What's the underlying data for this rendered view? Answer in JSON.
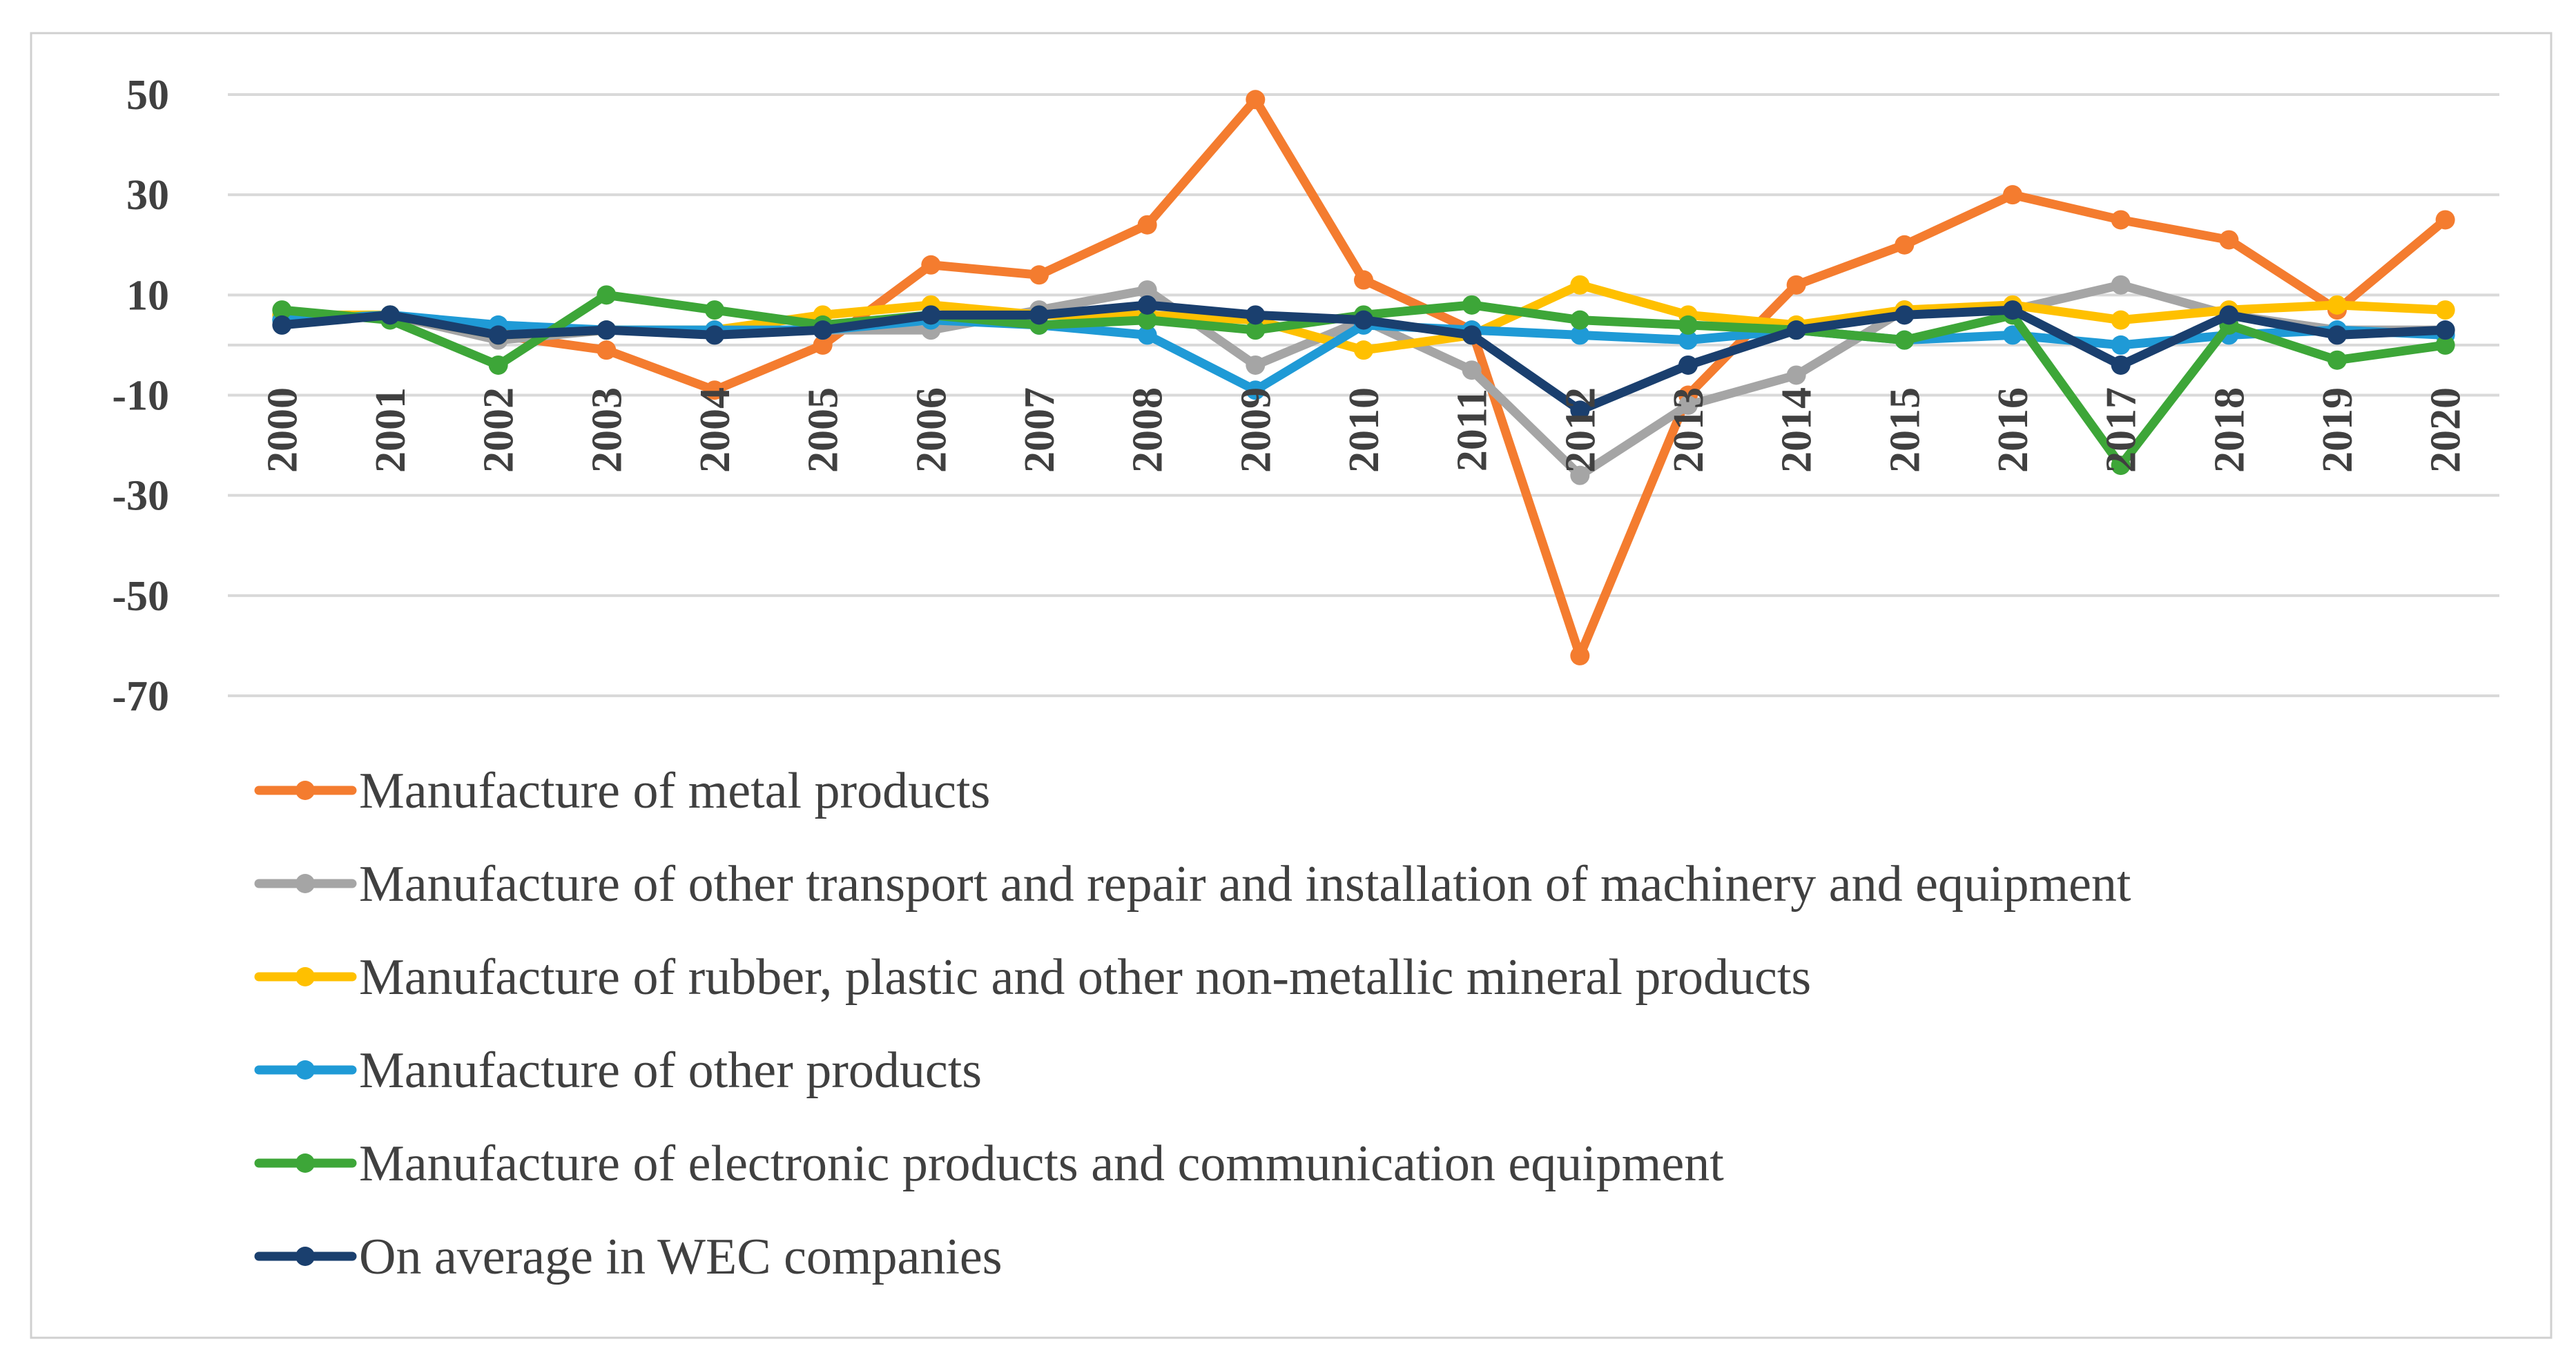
{
  "chart_data": {
    "type": "line",
    "title": "",
    "xlabel": "",
    "ylabel": "",
    "ylim": [
      -70,
      50
    ],
    "yticks": [
      50,
      30,
      10,
      -10,
      -30,
      -50,
      -70
    ],
    "ytick_labels": [
      "50",
      "30",
      "10",
      "-10",
      "-30",
      "-50",
      "-70"
    ],
    "grid": true,
    "legend_position": "bottom",
    "categories": [
      "2000",
      "2001",
      "2002",
      "2003",
      "2004",
      "2005",
      "2006",
      "2007",
      "2008",
      "2009",
      "2010",
      "2011",
      "2012",
      "2013",
      "2014",
      "2015",
      "2016",
      "2017",
      "2018",
      "2019",
      "2020"
    ],
    "series": [
      {
        "name": "Manufacture of metal products",
        "color": "#f47c2f",
        "values": [
          5,
          6,
          2,
          -1,
          -9,
          0,
          16,
          14,
          24,
          49,
          13,
          3,
          -62,
          -10,
          12,
          20,
          30,
          25,
          21,
          7,
          25
        ]
      },
      {
        "name": "Manufacture of other transport  and repair and installation of machinery and equipment",
        "color": "#a5a5a5",
        "values": [
          5,
          6,
          1,
          3,
          3,
          3,
          3,
          7,
          11,
          -4,
          5,
          -5,
          -26,
          -12,
          -6,
          7,
          7,
          12,
          6,
          3,
          3
        ]
      },
      {
        "name": "Manufacture of rubber, plastic and other non-metallic mineral products",
        "color": "#ffc000",
        "values": [
          6,
          6,
          2,
          3,
          3,
          6,
          8,
          6,
          6,
          5,
          -1,
          2,
          12,
          6,
          4,
          7,
          8,
          5,
          7,
          8,
          7
        ]
      },
      {
        "name": "Manufacture of other products",
        "color": "#1f9ad6",
        "values": [
          5,
          6,
          4,
          3,
          3,
          3,
          5,
          4,
          2,
          -9,
          4,
          3,
          2,
          1,
          3,
          1,
          2,
          0,
          2,
          3,
          2
        ]
      },
      {
        "name": "Manufacture of electronic products and communication equipment",
        "color": "#3da638",
        "values": [
          7,
          5,
          -4,
          10,
          7,
          4,
          6,
          4,
          5,
          3,
          6,
          8,
          5,
          4,
          3,
          1,
          6,
          -24,
          4,
          -3,
          0
        ]
      },
      {
        "name": "On average in WEC companies",
        "color": "#1a3f6e",
        "values": [
          4,
          6,
          2,
          3,
          2,
          3,
          6,
          6,
          8,
          6,
          5,
          2,
          -13,
          -4,
          3,
          6,
          7,
          -4,
          6,
          2,
          3
        ]
      }
    ]
  }
}
